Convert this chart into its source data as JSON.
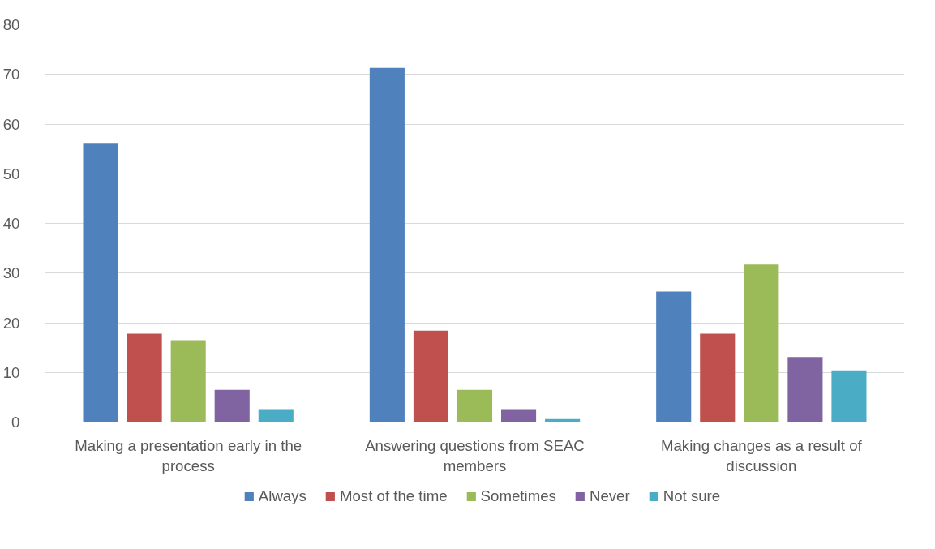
{
  "chart_data": {
    "type": "bar",
    "categories": [
      "Making a presentation early in the process",
      "Answering questions from SEAC members",
      "Making changes as a result of discussion"
    ],
    "series": [
      {
        "name": "Always",
        "color": "#4f81bd",
        "values": [
          56.2,
          71.3,
          26.3
        ]
      },
      {
        "name": "Most of the time",
        "color": "#c0504d",
        "values": [
          17.8,
          18.4,
          17.8
        ]
      },
      {
        "name": "Sometimes",
        "color": "#9bbb59",
        "values": [
          16.5,
          6.5,
          31.7
        ]
      },
      {
        "name": "Never",
        "color": "#8064a2",
        "values": [
          6.5,
          2.6,
          13.1
        ]
      },
      {
        "name": "Not sure",
        "color": "#4bacc6",
        "values": [
          2.6,
          0.6,
          10.4
        ]
      }
    ],
    "ylim": [
      0,
      80
    ],
    "yticks": [
      0,
      10,
      20,
      30,
      40,
      50,
      60,
      70,
      80
    ],
    "grid": "y",
    "legend": "bottom"
  }
}
